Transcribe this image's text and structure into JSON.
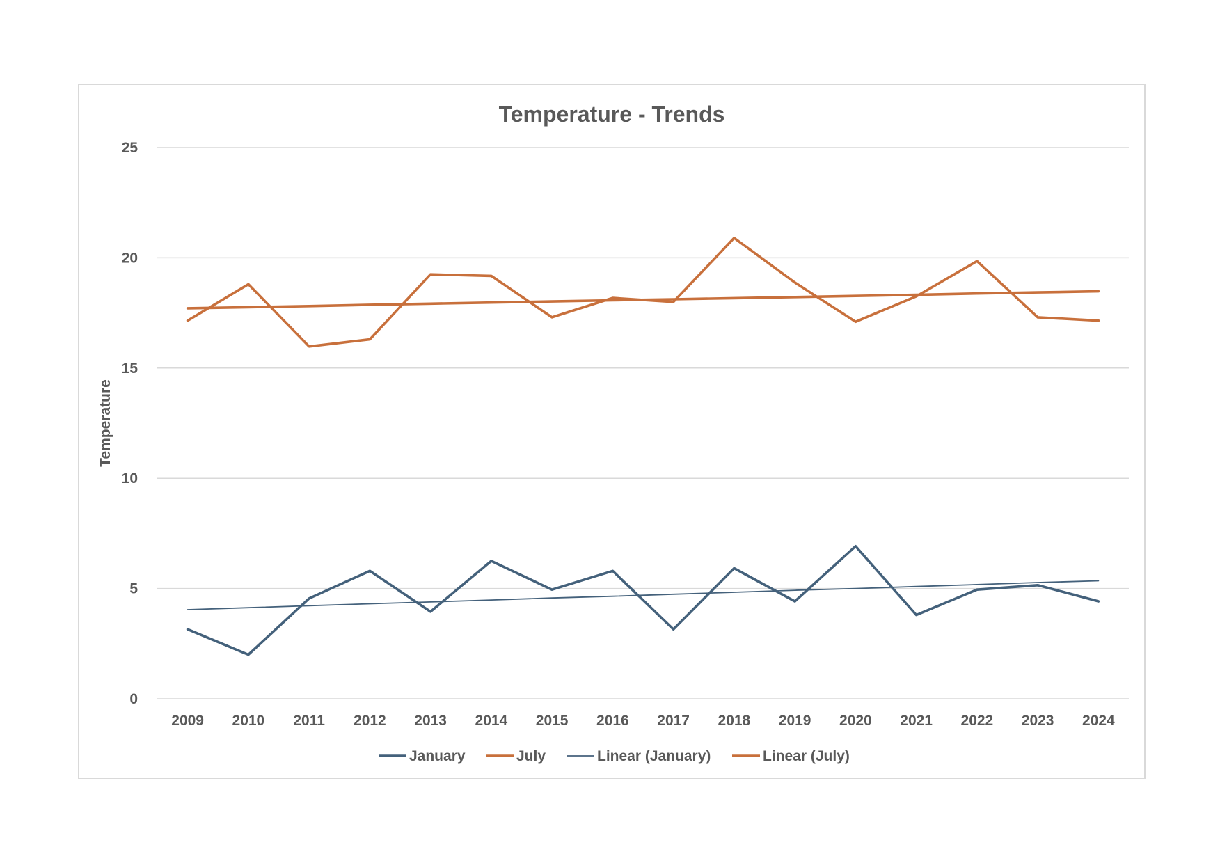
{
  "chart_data": {
    "type": "line",
    "title": "Temperature - Trends",
    "xlabel": "",
    "ylabel": "Temperature",
    "ylim": [
      0,
      25
    ],
    "yticks": [
      0,
      5,
      10,
      15,
      20,
      25
    ],
    "grid": true,
    "legend_position": "bottom",
    "categories": [
      "2009",
      "2010",
      "2011",
      "2012",
      "2013",
      "2014",
      "2015",
      "2016",
      "2017",
      "2018",
      "2019",
      "2020",
      "2021",
      "2022",
      "2023",
      "2024"
    ],
    "series": [
      {
        "name": "January",
        "color": "#44617b",
        "style": "thick",
        "values": [
          3.15,
          2.0,
          4.55,
          5.8,
          3.95,
          6.25,
          4.95,
          5.8,
          3.15,
          5.92,
          4.42,
          6.92,
          3.8,
          4.95,
          5.15,
          4.42
        ]
      },
      {
        "name": "July",
        "color": "#c8703c",
        "style": "thick",
        "values": [
          17.15,
          18.8,
          15.98,
          16.3,
          19.25,
          19.18,
          17.3,
          18.18,
          18.0,
          20.9,
          18.88,
          17.1,
          18.25,
          19.85,
          17.3,
          17.15
        ]
      },
      {
        "name": "Linear (January)",
        "color": "#44617b",
        "style": "thin",
        "trend_of": "January",
        "values": [
          4.04,
          4.13,
          4.22,
          4.31,
          4.39,
          4.48,
          4.57,
          4.65,
          4.74,
          4.83,
          4.92,
          5.0,
          5.09,
          5.18,
          5.27,
          5.35
        ]
      },
      {
        "name": "Linear (July)",
        "color": "#c8703c",
        "style": "thick",
        "trend_of": "July",
        "values": [
          17.71,
          17.76,
          17.81,
          17.87,
          17.92,
          17.97,
          18.02,
          18.07,
          18.12,
          18.17,
          18.22,
          18.27,
          18.32,
          18.38,
          18.43,
          18.48
        ]
      }
    ]
  }
}
